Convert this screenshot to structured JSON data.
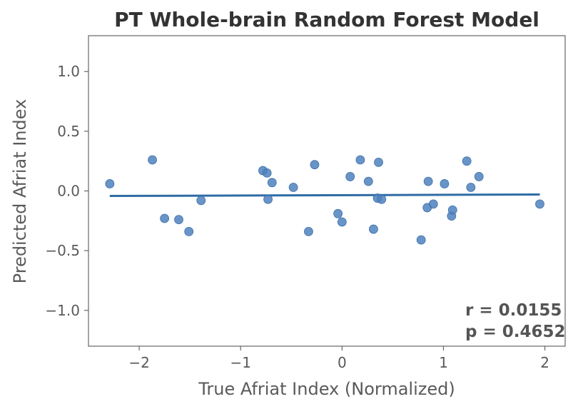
{
  "chart_data": {
    "type": "scatter",
    "title": "PT Whole-brain Random Forest Model",
    "xlabel": "True Afriat Index (Normalized)",
    "ylabel": "Predicted Afriat Index",
    "xlim": [
      -2.5,
      2.2
    ],
    "ylim": [
      -1.3,
      1.3
    ],
    "x_ticks": [
      -2,
      -1,
      0,
      1,
      2
    ],
    "x_tick_labels": [
      "−2",
      "−1",
      "0",
      "1",
      "2"
    ],
    "y_ticks": [
      1.0,
      0.5,
      0.0,
      -0.5,
      -1.0
    ],
    "y_tick_labels": [
      "1.0",
      "0.5",
      "0.0",
      "−0.5",
      "−1.0"
    ],
    "grid": false,
    "colors": {
      "points": "#4f81bd",
      "fit_line": "#2e6ca4",
      "axes": "#666666"
    },
    "points": [
      {
        "x": -2.29,
        "y": 0.06
      },
      {
        "x": -1.87,
        "y": 0.26
      },
      {
        "x": -1.75,
        "y": -0.23
      },
      {
        "x": -1.61,
        "y": -0.24
      },
      {
        "x": -1.51,
        "y": -0.34
      },
      {
        "x": -1.39,
        "y": -0.08
      },
      {
        "x": -0.78,
        "y": 0.17
      },
      {
        "x": -0.74,
        "y": 0.15
      },
      {
        "x": -0.73,
        "y": -0.07
      },
      {
        "x": -0.69,
        "y": 0.07
      },
      {
        "x": -0.48,
        "y": 0.03
      },
      {
        "x": -0.33,
        "y": -0.34
      },
      {
        "x": -0.27,
        "y": 0.22
      },
      {
        "x": -0.04,
        "y": -0.19
      },
      {
        "x": 0.0,
        "y": -0.26
      },
      {
        "x": 0.08,
        "y": 0.12
      },
      {
        "x": 0.18,
        "y": 0.26
      },
      {
        "x": 0.26,
        "y": 0.08
      },
      {
        "x": 0.31,
        "y": -0.32
      },
      {
        "x": 0.35,
        "y": -0.06
      },
      {
        "x": 0.36,
        "y": 0.24
      },
      {
        "x": 0.39,
        "y": -0.07
      },
      {
        "x": 0.78,
        "y": -0.41
      },
      {
        "x": 0.84,
        "y": -0.14
      },
      {
        "x": 0.85,
        "y": 0.08
      },
      {
        "x": 0.9,
        "y": -0.11
      },
      {
        "x": 1.01,
        "y": 0.06
      },
      {
        "x": 1.08,
        "y": -0.21
      },
      {
        "x": 1.09,
        "y": -0.16
      },
      {
        "x": 1.23,
        "y": 0.25
      },
      {
        "x": 1.27,
        "y": 0.03
      },
      {
        "x": 1.35,
        "y": 0.12
      },
      {
        "x": 1.95,
        "y": -0.11
      }
    ],
    "fit_line": {
      "x": [
        -2.29,
        1.95
      ],
      "y": [
        -0.042,
        -0.03
      ]
    },
    "annotations": [
      "r = 0.0155",
      "p = 0.4652"
    ]
  }
}
